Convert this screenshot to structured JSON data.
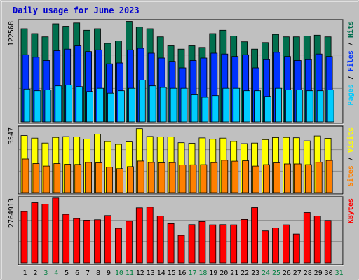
{
  "chart_data": {
    "type": "bar",
    "title": "Daily usage for June 2023",
    "colors": {
      "frame_bg": "#c0c0c0",
      "panel_bg": "#c0c0c0",
      "title": "#0000cc",
      "hits": "#006f4e",
      "files": "#0033ff",
      "pages": "#00ccff",
      "visits": "#ffff00",
      "sites": "#ff8000",
      "kbytes": "#ff0000",
      "day_normal": "#000000",
      "day_weekend": "#007f3f"
    },
    "categories": [
      "1",
      "2",
      "3",
      "4",
      "5",
      "6",
      "7",
      "8",
      "9",
      "10",
      "11",
      "12",
      "13",
      "14",
      "15",
      "16",
      "17",
      "18",
      "19",
      "20",
      "21",
      "22",
      "23",
      "24",
      "25",
      "26",
      "27",
      "28",
      "29",
      "30",
      "31"
    ],
    "weekend_days": [
      "3",
      "4",
      "10",
      "11",
      "17",
      "18",
      "24",
      "25",
      "31"
    ],
    "panels": [
      {
        "max_label": "122568",
        "ymax": 122568,
        "legend": [
          {
            "text": "Pages",
            "color_key": "pages"
          },
          {
            "text": " / ",
            "color_key": "sep"
          },
          {
            "text": "Files",
            "color_key": "files"
          },
          {
            "text": " / ",
            "color_key": "sep"
          },
          {
            "text": "Hits",
            "color_key": "hits"
          }
        ],
        "series": [
          {
            "name": "Hits",
            "color_key": "hits",
            "values": [
              114000,
              108000,
              104000,
              120000,
              117000,
              121000,
              112000,
              114000,
              96000,
              99000,
              123000,
              116000,
              114000,
              104000,
              93000,
              89000,
              93000,
              91000,
              108000,
              112000,
              105000,
              98000,
              89000,
              97000,
              107000,
              104000,
              104000,
              105000,
              106000,
              104000,
              0
            ]
          },
          {
            "name": "Files",
            "color_key": "files",
            "values": [
              82000,
              79000,
              75000,
              87000,
              89000,
              93000,
              86000,
              88000,
              71000,
              72000,
              88000,
              90000,
              84000,
              78000,
              74000,
              66000,
              75000,
              78000,
              84000,
              83000,
              80000,
              82000,
              66000,
              76000,
              85000,
              80000,
              75000,
              76000,
              83000,
              80000,
              0
            ]
          },
          {
            "name": "Pages",
            "color_key": "pages",
            "values": [
              40000,
              38000,
              39000,
              44000,
              45000,
              43000,
              37000,
              41000,
              35000,
              38000,
              41000,
              51000,
              44000,
              42000,
              41000,
              41000,
              33000,
              30000,
              32000,
              41000,
              41000,
              38000,
              38000,
              31000,
              41000,
              39000,
              39000,
              38000,
              38000,
              39000,
              0
            ]
          }
        ]
      },
      {
        "max_label": "3547",
        "ymax": 3547,
        "legend": [
          {
            "text": "Sites",
            "color_key": "sites"
          },
          {
            "text": " / ",
            "color_key": "sep"
          },
          {
            "text": "Visits",
            "color_key": "visits"
          }
        ],
        "series": [
          {
            "name": "Visits",
            "color_key": "visits",
            "values": [
              3140,
              3000,
              2730,
              3040,
              3080,
              3060,
              2950,
              3220,
              2810,
              2660,
              2790,
              3520,
              3090,
              3070,
              3070,
              2750,
              2720,
              3010,
              2940,
              3000,
              2820,
              2700,
              2730,
              2920,
              3030,
              3040,
              3020,
              2850,
              3120,
              2990,
              0
            ]
          },
          {
            "name": "Sites",
            "color_key": "sites",
            "values": [
              1850,
              1600,
              1460,
              1600,
              1560,
              1550,
              1660,
              1640,
              1400,
              1320,
              1430,
              1740,
              1660,
              1640,
              1650,
              1520,
              1530,
              1540,
              1650,
              1780,
              1730,
              1750,
              1460,
              1540,
              1640,
              1580,
              1580,
              1540,
              1670,
              1770,
              0
            ]
          }
        ]
      },
      {
        "max_label": "2764913",
        "ymax": 2764913,
        "legend": [
          {
            "text": "KBytes",
            "color_key": "kbytes"
          }
        ],
        "series": [
          {
            "name": "KBytes",
            "color_key": "kbytes",
            "values": [
              2220000,
              2600000,
              2540000,
              2800000,
              2100000,
              1920000,
              1850000,
              1870000,
              2050000,
              1500000,
              1810000,
              2380000,
              2410000,
              2030000,
              1700000,
              1200000,
              1660000,
              1790000,
              1650000,
              1660000,
              1650000,
              1880000,
              2390000,
              1390000,
              1520000,
              1650000,
              1260000,
              2180000,
              2030000,
              1840000,
              0
            ]
          }
        ]
      }
    ]
  }
}
